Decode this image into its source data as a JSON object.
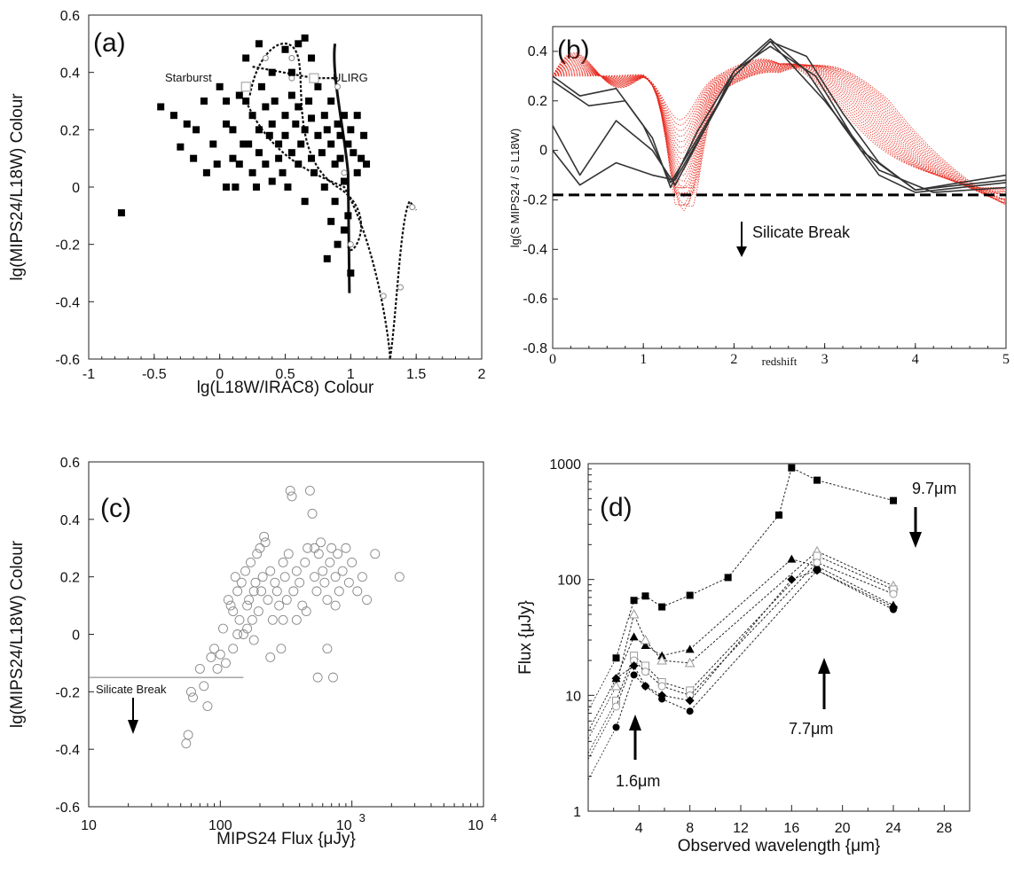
{
  "chart_data": [
    {
      "panel": "(a)",
      "type": "scatter",
      "xlabel": "lg(L18W/IRAC8) Colour",
      "ylabel": "lg(MIPS24/L18W) Colour",
      "xlim": [
        -1,
        2
      ],
      "ylim": [
        -0.6,
        0.6
      ],
      "xticks": [
        "-1",
        "-0.5",
        "0",
        "0.5",
        "1",
        "1.5",
        "2"
      ],
      "yticks": [
        "-0.6",
        "-0.4",
        "-0.2",
        "0",
        "0.2",
        "0.4",
        "0.6"
      ],
      "annotations": [
        "Starburst",
        "ULIRG"
      ],
      "points": [
        [
          -0.75,
          -0.09
        ],
        [
          -0.45,
          0.28
        ],
        [
          -0.35,
          0.25
        ],
        [
          -0.3,
          0.14
        ],
        [
          -0.25,
          0.22
        ],
        [
          -0.2,
          0.1
        ],
        [
          -0.18,
          0.2
        ],
        [
          -0.12,
          0.3
        ],
        [
          -0.1,
          0.05
        ],
        [
          -0.05,
          0.15
        ],
        [
          0.0,
          0.35
        ],
        [
          0.05,
          0.3
        ],
        [
          0.05,
          0.22
        ],
        [
          0.1,
          0.1
        ],
        [
          0.1,
          0.2
        ],
        [
          0.12,
          0.0
        ],
        [
          0.15,
          0.08
        ],
        [
          0.2,
          0.3
        ],
        [
          0.22,
          0.15
        ],
        [
          0.25,
          0.25
        ],
        [
          0.25,
          0.05
        ],
        [
          0.28,
          0.0
        ],
        [
          0.3,
          0.2
        ],
        [
          0.3,
          0.12
        ],
        [
          0.32,
          0.35
        ],
        [
          0.35,
          0.28
        ],
        [
          0.35,
          0.08
        ],
        [
          0.38,
          0.18
        ],
        [
          0.4,
          0.22
        ],
        [
          0.4,
          0.02
        ],
        [
          0.42,
          0.3
        ],
        [
          0.45,
          0.15
        ],
        [
          0.45,
          0.1
        ],
        [
          0.48,
          0.05
        ],
        [
          0.5,
          0.25
        ],
        [
          0.5,
          0.18
        ],
        [
          0.52,
          0.0
        ],
        [
          0.55,
          0.32
        ],
        [
          0.55,
          0.12
        ],
        [
          0.58,
          0.22
        ],
        [
          0.6,
          0.5
        ],
        [
          0.6,
          0.28
        ],
        [
          0.6,
          0.08
        ],
        [
          0.62,
          0.15
        ],
        [
          0.65,
          0.2
        ],
        [
          0.65,
          -0.05
        ],
        [
          0.68,
          0.3
        ],
        [
          0.7,
          0.1
        ],
        [
          0.7,
          0.24
        ],
        [
          0.72,
          0.05
        ],
        [
          0.75,
          0.18
        ],
        [
          0.75,
          0.35
        ],
        [
          0.78,
          0.12
        ],
        [
          0.8,
          0.25
        ],
        [
          0.8,
          0.0
        ],
        [
          0.82,
          0.2
        ],
        [
          0.85,
          0.15
        ],
        [
          0.85,
          0.3
        ],
        [
          0.88,
          0.08
        ],
        [
          0.88,
          -0.05
        ],
        [
          0.9,
          0.22
        ],
        [
          0.92,
          0.18
        ],
        [
          0.92,
          0.1
        ],
        [
          0.95,
          0.25
        ],
        [
          0.95,
          0.02
        ],
        [
          0.98,
          0.15
        ],
        [
          0.98,
          -0.1
        ],
        [
          1.0,
          0.2
        ],
        [
          1.02,
          0.12
        ],
        [
          1.05,
          0.05
        ],
        [
          1.05,
          0.25
        ],
        [
          1.08,
          0.1
        ],
        [
          1.1,
          0.18
        ],
        [
          1.12,
          0.08
        ],
        [
          0.9,
          -0.2
        ],
        [
          0.95,
          -0.15
        ],
        [
          1.0,
          -0.3
        ],
        [
          0.85,
          -0.12
        ],
        [
          0.82,
          -0.25
        ],
        [
          0.5,
          0.48
        ],
        [
          0.3,
          0.5
        ],
        [
          0.7,
          0.45
        ],
        [
          0.55,
          0.4
        ],
        [
          0.2,
          0.45
        ],
        [
          0.4,
          0.4
        ],
        [
          0.15,
          0.32
        ],
        [
          0.65,
          0.52
        ],
        [
          -0.02,
          0.08
        ],
        [
          0.05,
          0.0
        ],
        [
          0.18,
          0.15
        ]
      ]
    },
    {
      "panel": "(b)",
      "type": "line",
      "xlabel": "redshift",
      "ylabel": "lg(S MIPS24 / S L18W)",
      "xlim": [
        0,
        5
      ],
      "ylim": [
        -0.8,
        0.5
      ],
      "xticks": [
        "0",
        "1",
        "2",
        "3",
        "4",
        "5"
      ],
      "yticks": [
        "-0.8",
        "-0.6",
        "-0.4",
        "-0.2",
        "0",
        "0.2",
        "0.4"
      ],
      "threshold": -0.18,
      "annotation": "Silicate Break"
    },
    {
      "panel": "(c)",
      "type": "scatter",
      "xscale": "log",
      "xlabel": "MIPS24 Flux {μJy}",
      "ylabel": "lg(MIPS24/L18W) Colour",
      "xlim": [
        10,
        10000
      ],
      "ylim": [
        -0.6,
        0.6
      ],
      "xticks": [
        "10",
        "100",
        "10",
        "10"
      ],
      "xtick_sup": [
        "",
        "",
        "3",
        "4"
      ],
      "yticks": [
        "-0.6",
        "-0.4",
        "-0.2",
        "0",
        "0.2",
        "0.4",
        "0.6"
      ],
      "threshold": -0.15,
      "annotation": "Silicate Break",
      "points": [
        [
          55,
          -0.38
        ],
        [
          57,
          -0.35
        ],
        [
          60,
          -0.2
        ],
        [
          62,
          -0.22
        ],
        [
          70,
          -0.12
        ],
        [
          75,
          -0.18
        ],
        [
          80,
          -0.25
        ],
        [
          85,
          -0.08
        ],
        [
          90,
          -0.05
        ],
        [
          95,
          -0.12
        ],
        [
          100,
          -0.07
        ],
        [
          105,
          0.02
        ],
        [
          110,
          -0.1
        ],
        [
          115,
          0.12
        ],
        [
          120,
          0.1
        ],
        [
          125,
          0.08
        ],
        [
          130,
          0.2
        ],
        [
          135,
          0.15
        ],
        [
          140,
          0.05
        ],
        [
          145,
          0.18
        ],
        [
          150,
          0.0
        ],
        [
          155,
          0.22
        ],
        [
          160,
          0.1
        ],
        [
          165,
          0.12
        ],
        [
          170,
          0.25
        ],
        [
          175,
          0.05
        ],
        [
          180,
          -0.02
        ],
        [
          185,
          0.18
        ],
        [
          190,
          0.28
        ],
        [
          195,
          0.08
        ],
        [
          200,
          0.3
        ],
        [
          205,
          0.15
        ],
        [
          210,
          0.2
        ],
        [
          215,
          0.34
        ],
        [
          220,
          0.32
        ],
        [
          230,
          0.12
        ],
        [
          240,
          0.22
        ],
        [
          250,
          0.05
        ],
        [
          260,
          0.18
        ],
        [
          270,
          0.15
        ],
        [
          280,
          0.1
        ],
        [
          290,
          -0.05
        ],
        [
          300,
          0.25
        ],
        [
          310,
          0.2
        ],
        [
          320,
          0.12
        ],
        [
          330,
          0.28
        ],
        [
          340,
          0.5
        ],
        [
          350,
          0.48
        ],
        [
          360,
          0.15
        ],
        [
          380,
          0.22
        ],
        [
          400,
          0.18
        ],
        [
          420,
          0.1
        ],
        [
          440,
          0.25
        ],
        [
          460,
          0.3
        ],
        [
          480,
          0.5
        ],
        [
          500,
          0.42
        ],
        [
          520,
          0.2
        ],
        [
          540,
          0.15
        ],
        [
          560,
          0.28
        ],
        [
          580,
          0.32
        ],
        [
          600,
          0.22
        ],
        [
          620,
          0.18
        ],
        [
          650,
          0.12
        ],
        [
          680,
          0.25
        ],
        [
          700,
          0.3
        ],
        [
          720,
          -0.15
        ],
        [
          750,
          0.2
        ],
        [
          780,
          0.28
        ],
        [
          800,
          0.15
        ],
        [
          850,
          0.22
        ],
        [
          900,
          0.3
        ],
        [
          950,
          0.18
        ],
        [
          1000,
          0.25
        ],
        [
          1100,
          0.15
        ],
        [
          1200,
          0.2
        ],
        [
          1300,
          0.12
        ],
        [
          1500,
          0.28
        ],
        [
          2300,
          0.2
        ],
        [
          240,
          -0.08
        ],
        [
          180,
          0.15
        ],
        [
          135,
          0.0
        ],
        [
          125,
          -0.05
        ],
        [
          300,
          0.05
        ],
        [
          450,
          0.08
        ],
        [
          650,
          -0.05
        ],
        [
          160,
          0.02
        ],
        [
          520,
          0.3
        ],
        [
          380,
          0.05
        ],
        [
          750,
          0.1
        ],
        [
          550,
          -0.15
        ]
      ]
    },
    {
      "panel": "(d)",
      "type": "line",
      "yscale": "log",
      "xlabel": "Observed wavelength {μm}",
      "ylabel": "Flux {μJy}",
      "xlim": [
        0,
        30
      ],
      "ylim": [
        1,
        1000
      ],
      "xticks": [
        "4",
        "8",
        "12",
        "16",
        "20",
        "24",
        "28"
      ],
      "yticks": [
        "1",
        "10",
        "100",
        "1000"
      ],
      "annotations": [
        "9.7μm",
        "7.7μm",
        "1.6μm"
      ],
      "series": [
        {
          "marker": "square",
          "x": [
            2.2,
            3.6,
            4.5,
            5.8,
            8.0,
            11,
            15,
            16,
            18,
            24
          ],
          "y": [
            21,
            66,
            72,
            58,
            73,
            104,
            360,
            920,
            720,
            480
          ]
        },
        {
          "marker": "triangle",
          "x": [
            2.2,
            3.6,
            4.5,
            5.8,
            8.0,
            16,
            18,
            24
          ],
          "y": [
            14,
            32,
            27,
            22,
            25,
            150,
            130,
            60
          ]
        },
        {
          "marker": "open-triangle",
          "x": [
            2.2,
            3.6,
            4.5,
            5.8,
            8.0,
            18,
            24
          ],
          "y": [
            12,
            50,
            30,
            20,
            19,
            175,
            88
          ]
        },
        {
          "marker": "open-square",
          "x": [
            2.2,
            3.6,
            4.5,
            5.8,
            8.0,
            18,
            24
          ],
          "y": [
            9,
            22,
            18,
            13,
            11,
            160,
            82
          ]
        },
        {
          "marker": "open-circle",
          "x": [
            2.2,
            3.6,
            4.5,
            5.8,
            8.0,
            18,
            24
          ],
          "y": [
            8,
            20,
            16,
            12,
            10,
            140,
            75
          ]
        },
        {
          "marker": "diamond",
          "x": [
            2.2,
            3.6,
            4.5,
            5.8,
            8.0,
            16,
            18,
            24
          ],
          "y": [
            14,
            18,
            12,
            10,
            9,
            100,
            120,
            58
          ]
        },
        {
          "marker": "circle",
          "x": [
            2.2,
            3.6,
            4.5,
            5.8,
            8.0,
            18,
            24
          ],
          "y": [
            5.3,
            15,
            12,
            9.3,
            7.3,
            120,
            55
          ]
        }
      ]
    }
  ]
}
